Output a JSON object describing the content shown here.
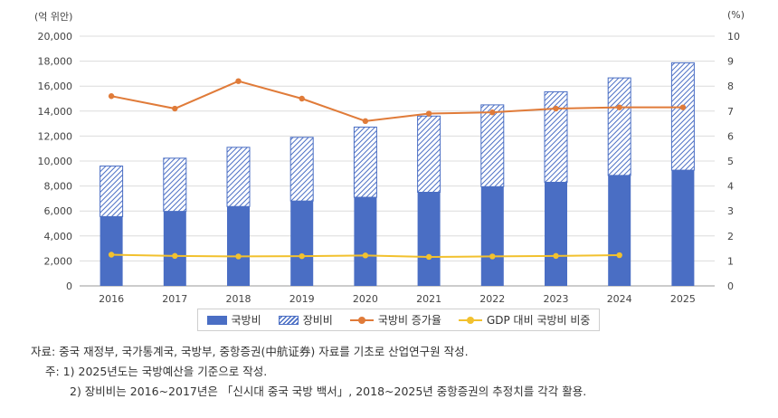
{
  "chart_data": {
    "type": "bar",
    "categories": [
      "2016",
      "2017",
      "2018",
      "2019",
      "2020",
      "2021",
      "2022",
      "2023",
      "2024",
      "2025"
    ],
    "left_unit": "(억 위안)",
    "right_unit": "(%)",
    "left_ylim": [
      0,
      20000
    ],
    "left_ticks": [
      "0",
      "2,000",
      "4,000",
      "6,000",
      "8,000",
      "10,000",
      "12,000",
      "14,000",
      "16,000",
      "18,000",
      "20,000"
    ],
    "right_ylim": [
      0,
      10
    ],
    "right_ticks": [
      "0",
      "1",
      "2",
      "3",
      "4",
      "5",
      "6",
      "7",
      "8",
      "9",
      "10"
    ],
    "grid": true,
    "legend_position": "bottom",
    "bar_series": [
      {
        "name": "국방비",
        "color": "#4a6ec4",
        "style": "solid",
        "values": [
          5550,
          5970,
          6360,
          6800,
          7100,
          7500,
          7950,
          8300,
          8850,
          9270
        ]
      },
      {
        "name": "장비비",
        "color": "#4a6ec4",
        "style": "hatched",
        "values": [
          4050,
          4260,
          4740,
          5100,
          5620,
          6100,
          6550,
          7250,
          7810,
          8600
        ]
      }
    ],
    "line_series": [
      {
        "name": "국방비 증가율",
        "color": "#e07b39",
        "axis": "right",
        "values": [
          7.6,
          7.1,
          8.2,
          7.5,
          6.6,
          6.9,
          6.95,
          7.1,
          7.15,
          7.15
        ]
      },
      {
        "name": "GDP 대비 국방비 비중",
        "color": "#f2c12e",
        "axis": "right",
        "values": [
          1.25,
          1.2,
          1.18,
          1.19,
          1.22,
          1.16,
          1.18,
          1.2,
          1.23,
          null
        ]
      }
    ]
  },
  "notes": {
    "source": "자료: 중국 재정부, 국가통계국, 국방부, 중항증권(中航证券) 자료를 기초로 산업연구원 작성.",
    "note1": "주: 1) 2025년도는 국방예산을 기준으로 작성.",
    "note2": "2) 장비비는 2016~2017년은 「신시대 중국 국방 백서」, 2018~2025년 중항증권의 추정치를 각각 활용."
  }
}
